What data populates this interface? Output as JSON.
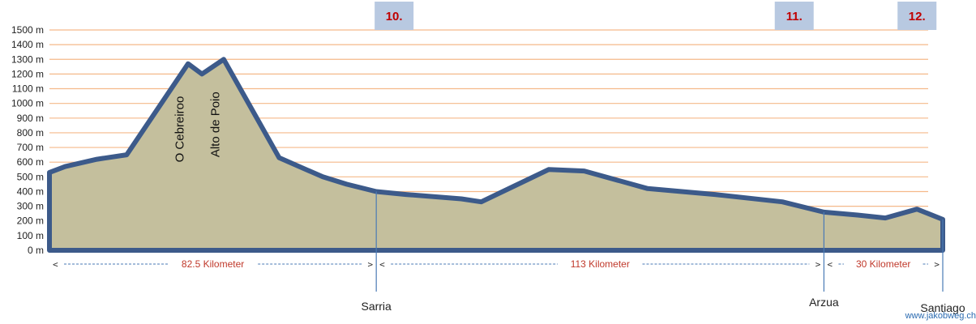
{
  "chart_data": {
    "type": "area",
    "title": "",
    "xlabel": "",
    "ylabel": "",
    "y_unit": "m",
    "xlim": [
      0,
      225.5
    ],
    "ylim": [
      0,
      1500
    ],
    "y_ticks": [
      {
        "value": 0,
        "label": "0 m"
      },
      {
        "value": 100,
        "label": "100 m"
      },
      {
        "value": 200,
        "label": "200 m"
      },
      {
        "value": 300,
        "label": "300 m"
      },
      {
        "value": 400,
        "label": "400 m"
      },
      {
        "value": 500,
        "label": "500 m"
      },
      {
        "value": 600,
        "label": "600 m"
      },
      {
        "value": 700,
        "label": "700 m"
      },
      {
        "value": 800,
        "label": "800 m"
      },
      {
        "value": 900,
        "label": "900 m"
      },
      {
        "value": 1000,
        "label": "1000 m"
      },
      {
        "value": 1100,
        "label": "1100 m"
      },
      {
        "value": 1200,
        "label": "1200 m"
      },
      {
        "value": 1300,
        "label": "1300 m"
      },
      {
        "value": 1400,
        "label": "1400 m"
      },
      {
        "value": 1500,
        "label": "1500 m"
      }
    ],
    "grid": true,
    "fill_color": "#c4bf9d",
    "line_color": "#3c5a8a",
    "grid_color": "#f5b98a",
    "profile_km": [
      0,
      4,
      12,
      19.5,
      35,
      38.5,
      44,
      58,
      69,
      75,
      82.5,
      90,
      104,
      109,
      126,
      135,
      151,
      168,
      185,
      195.5,
      204,
      211,
      219,
      225.5
    ],
    "profile_elev": [
      530,
      570,
      620,
      650,
      1270,
      1200,
      1300,
      630,
      500,
      450,
      400,
      380,
      350,
      330,
      550,
      540,
      420,
      380,
      330,
      260,
      240,
      220,
      280,
      210
    ],
    "stages": [
      {
        "label": "10.",
        "km": 87
      },
      {
        "label": "11.",
        "km": 188
      },
      {
        "label": "12.",
        "km": 219
      }
    ],
    "peaks": [
      {
        "label": "O Cebreiroo",
        "km": 34.5,
        "elevation": 1270
      },
      {
        "label": "Alto de Poio",
        "km": 43.5,
        "elevation": 1300
      }
    ],
    "places": [
      {
        "label": "Sarria",
        "km": 82.5
      },
      {
        "label": "Arzua",
        "km": 195.5
      },
      {
        "label": "Santiago",
        "km": 225.5
      }
    ],
    "segments": [
      {
        "label": "82.5 Kilometer",
        "from_km": 0,
        "to_km": 82.5
      },
      {
        "label": "113 Kilometer",
        "from_km": 82.5,
        "to_km": 195.5
      },
      {
        "label": "30 Kilometer",
        "from_km": 195.5,
        "to_km": 225.5
      }
    ],
    "credit": "www.jakobweg.ch"
  }
}
